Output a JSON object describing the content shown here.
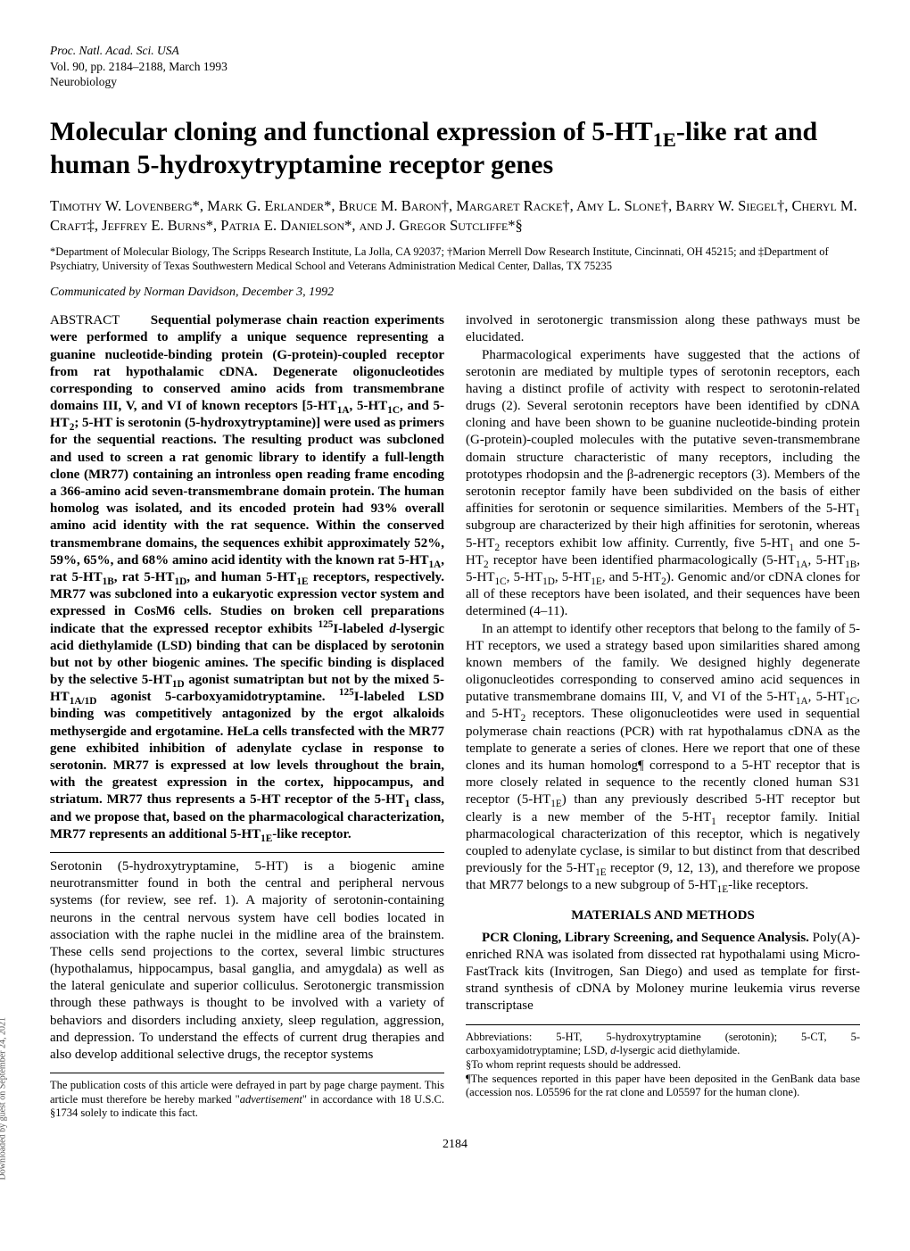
{
  "header": {
    "journal": "Proc. Natl. Acad. Sci. USA",
    "vol": "Vol. 90, pp. 2184–2188, March 1993",
    "section": "Neurobiology"
  },
  "title_html": "Molecular cloning and functional expression of 5-HT<sub>1E</sub>-like rat and human 5-hydroxytryptamine receptor genes",
  "authors_html": "Timothy W. Lovenberg*, Mark G. Erlander*, Bruce M. Baron†, Margaret Racke†, Amy L. Slone†, Barry W. Siegel†, Cheryl M. Craft‡, Jeffrey E. Burns*, Patria E. Danielson*, and J. Gregor Sutcliffe*§",
  "affiliations": "*Department of Molecular Biology, The Scripps Research Institute, La Jolla, CA 92037; †Marion Merrell Dow Research Institute, Cincinnati, OH 45215; and ‡Department of Psychiatry, University of Texas Southwestern Medical School and Veterans Administration Medical Center, Dallas, TX 75235",
  "communicated": "Communicated by Norman Davidson, December 3, 1992",
  "abstract_label": "ABSTRACT",
  "abstract_html": "Sequential polymerase chain reaction experiments were performed to amplify a unique sequence representing a guanine nucleotide-binding protein (G-protein)-coupled receptor from rat hypothalamic cDNA. Degenerate oligonucleotides corresponding to conserved amino acids from transmembrane domains III, V, and VI of known receptors [5-HT<sub>1A</sub>, 5-HT<sub>1C</sub>, and 5-HT<sub>2</sub>; 5-HT is serotonin (5-hydroxytryptamine)] were used as primers for the sequential reactions. The resulting product was subcloned and used to screen a rat genomic library to identify a full-length clone (MR77) containing an intronless open reading frame encoding a 366-amino acid seven-transmembrane domain protein. The human homolog was isolated, and its encoded protein had 93% overall amino acid identity with the rat sequence. Within the conserved transmembrane domains, the sequences exhibit approximately 52%, 59%, 65%, and 68% amino acid identity with the known rat 5-HT<sub>1A</sub>, rat 5-HT<sub>1B</sub>, rat 5-HT<sub>1D</sub>, and human 5-HT<sub>1E</sub> receptors, respectively. MR77 was subcloned into a eukaryotic expression vector system and expressed in CosM6 cells. Studies on broken cell preparations indicate that the expressed receptor exhibits <sup>125</sup>I-labeled <i>d</i>-lysergic acid diethylamide (LSD) binding that can be displaced by serotonin but not by other biogenic amines. The specific binding is displaced by the selective 5-HT<sub>1D</sub> agonist sumatriptan but not by the mixed 5-HT<sub>1A/1D</sub> agonist 5-carboxyamidotryptamine. <sup>125</sup>I-labeled LSD binding was competitively antagonized by the ergot alkaloids methysergide and ergotamine. HeLa cells transfected with the MR77 gene exhibited inhibition of adenylate cyclase in response to serotonin. MR77 is expressed at low levels throughout the brain, with the greatest expression in the cortex, hippocampus, and striatum. MR77 thus represents a 5-HT receptor of the 5-HT<sub>1</sub> class, and we propose that, based on the pharmacological characterization, MR77 represents an additional 5-HT<sub>1E</sub>-like receptor.",
  "intro_p1_html": "Serotonin (5-hydroxytryptamine, 5-HT) is a biogenic amine neurotransmitter found in both the central and peripheral nervous systems (for review, see ref. 1). A majority of serotonin-containing neurons in the central nervous system have cell bodies located in association with the raphe nuclei in the midline area of the brainstem. These cells send projections to the cortex, several limbic structures (hypothalamus, hippocampus, basal ganglia, and amygdala) as well as the lateral geniculate and superior colliculus. Serotonergic transmission through these pathways is thought to be involved with a variety of behaviors and disorders including anxiety, sleep regulation, aggression, and depression. To understand the effects of current drug therapies and also develop additional selective drugs, the receptor systems",
  "intro_cont_html": "involved in serotonergic transmission along these pathways must be elucidated.",
  "intro_p2_html": "Pharmacological experiments have suggested that the actions of serotonin are mediated by multiple types of serotonin receptors, each having a distinct profile of activity with respect to serotonin-related drugs (2). Several serotonin receptors have been identified by cDNA cloning and have been shown to be guanine nucleotide-binding protein (G-protein)-coupled molecules with the putative seven-transmembrane domain structure characteristic of many receptors, including the prototypes rhodopsin and the β-adrenergic receptors (3). Members of the serotonin receptor family have been subdivided on the basis of either affinities for serotonin or sequence similarities. Members of the 5-HT<sub>1</sub> subgroup are characterized by their high affinities for serotonin, whereas 5-HT<sub>2</sub> receptors exhibit low affinity. Currently, five 5-HT<sub>1</sub> and one 5-HT<sub>2</sub> receptor have been identified pharmacologically (5-HT<sub>1A</sub>, 5-HT<sub>1B</sub>, 5-HT<sub>1C</sub>, 5-HT<sub>1D</sub>, 5-HT<sub>1E</sub>, and 5-HT<sub>2</sub>). Genomic and/or cDNA clones for all of these receptors have been isolated, and their sequences have been determined (4–11).",
  "intro_p3_html": "In an attempt to identify other receptors that belong to the family of 5-HT receptors, we used a strategy based upon similarities shared among known members of the family. We designed highly degenerate oligonucleotides corresponding to conserved amino acid sequences in putative transmembrane domains III, V, and VI of the 5-HT<sub>1A</sub>, 5-HT<sub>1C</sub>, and 5-HT<sub>2</sub> receptors. These oligonucleotides were used in sequential polymerase chain reactions (PCR) with rat hypothalamus cDNA as the template to generate a series of clones. Here we report that one of these clones and its human homolog¶ correspond to a 5-HT receptor that is more closely related in sequence to the recently cloned human S31 receptor (5-HT<sub>1E</sub>) than any previously described 5-HT receptor but clearly is a new member of the 5-HT<sub>1</sub> receptor family. Initial pharmacological characterization of this receptor, which is negatively coupled to adenylate cyclase, is similar to but distinct from that described previously for the 5-HT<sub>1E</sub> receptor (9, 12, 13), and therefore we propose that MR77 belongs to a new subgroup of 5-HT<sub>1E</sub>-like receptors.",
  "methods_heading": "MATERIALS AND METHODS",
  "methods_p1_html": "<b>PCR Cloning, Library Screening, and Sequence Analysis.</b> Poly(A)-enriched RNA was isolated from dissected rat hypothalami using Micro-FastTrack kits (Invitrogen, San Diego) and used as template for first-strand synthesis of cDNA by Moloney murine leukemia virus reverse transcriptase",
  "left_footnote_html": "The publication costs of this article were defrayed in part by page charge payment. This article must therefore be hereby marked \"<i>advertisement</i>\" in accordance with 18 U.S.C. §1734 solely to indicate this fact.",
  "right_footnote_html": "Abbreviations: 5-HT, 5-hydroxytryptamine (serotonin); 5-CT, 5-carboxyamidotryptamine; LSD, <i>d</i>-lysergic acid diethylamide.<br>§To whom reprint requests should be addressed.<br>¶The sequences reported in this paper have been deposited in the GenBank data base (accession nos. L05596 for the rat clone and L05597 for the human clone).",
  "page_number": "2184",
  "side_text": "Downloaded by guest on September 24, 2021"
}
